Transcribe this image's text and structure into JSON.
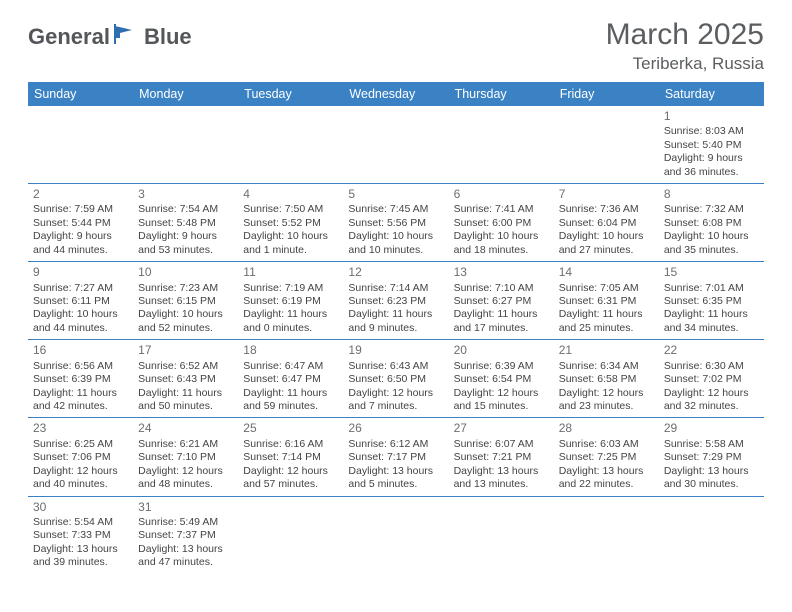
{
  "brand": {
    "part1": "General",
    "part2": "Blue",
    "text_color": "#54575a",
    "flag_color": "#2f6fb0"
  },
  "title": "March 2025",
  "location": "Teriberka, Russia",
  "colors": {
    "header_bg": "#3b82c4",
    "header_text": "#ffffff",
    "cell_border": "#3b82c4",
    "body_text": "#444444",
    "daynum_color": "#6b6e71",
    "title_color": "#5b5e61",
    "background": "#ffffff"
  },
  "fonts": {
    "day_header_size": 12.5,
    "cell_size": 10.5,
    "title_size": 30,
    "location_size": 17
  },
  "day_headers": [
    "Sunday",
    "Monday",
    "Tuesday",
    "Wednesday",
    "Thursday",
    "Friday",
    "Saturday"
  ],
  "weeks": [
    [
      null,
      null,
      null,
      null,
      null,
      null,
      {
        "n": "1",
        "sr": "Sunrise: 8:03 AM",
        "ss": "Sunset: 5:40 PM",
        "d1": "Daylight: 9 hours",
        "d2": "and 36 minutes."
      }
    ],
    [
      {
        "n": "2",
        "sr": "Sunrise: 7:59 AM",
        "ss": "Sunset: 5:44 PM",
        "d1": "Daylight: 9 hours",
        "d2": "and 44 minutes."
      },
      {
        "n": "3",
        "sr": "Sunrise: 7:54 AM",
        "ss": "Sunset: 5:48 PM",
        "d1": "Daylight: 9 hours",
        "d2": "and 53 minutes."
      },
      {
        "n": "4",
        "sr": "Sunrise: 7:50 AM",
        "ss": "Sunset: 5:52 PM",
        "d1": "Daylight: 10 hours",
        "d2": "and 1 minute."
      },
      {
        "n": "5",
        "sr": "Sunrise: 7:45 AM",
        "ss": "Sunset: 5:56 PM",
        "d1": "Daylight: 10 hours",
        "d2": "and 10 minutes."
      },
      {
        "n": "6",
        "sr": "Sunrise: 7:41 AM",
        "ss": "Sunset: 6:00 PM",
        "d1": "Daylight: 10 hours",
        "d2": "and 18 minutes."
      },
      {
        "n": "7",
        "sr": "Sunrise: 7:36 AM",
        "ss": "Sunset: 6:04 PM",
        "d1": "Daylight: 10 hours",
        "d2": "and 27 minutes."
      },
      {
        "n": "8",
        "sr": "Sunrise: 7:32 AM",
        "ss": "Sunset: 6:08 PM",
        "d1": "Daylight: 10 hours",
        "d2": "and 35 minutes."
      }
    ],
    [
      {
        "n": "9",
        "sr": "Sunrise: 7:27 AM",
        "ss": "Sunset: 6:11 PM",
        "d1": "Daylight: 10 hours",
        "d2": "and 44 minutes."
      },
      {
        "n": "10",
        "sr": "Sunrise: 7:23 AM",
        "ss": "Sunset: 6:15 PM",
        "d1": "Daylight: 10 hours",
        "d2": "and 52 minutes."
      },
      {
        "n": "11",
        "sr": "Sunrise: 7:19 AM",
        "ss": "Sunset: 6:19 PM",
        "d1": "Daylight: 11 hours",
        "d2": "and 0 minutes."
      },
      {
        "n": "12",
        "sr": "Sunrise: 7:14 AM",
        "ss": "Sunset: 6:23 PM",
        "d1": "Daylight: 11 hours",
        "d2": "and 9 minutes."
      },
      {
        "n": "13",
        "sr": "Sunrise: 7:10 AM",
        "ss": "Sunset: 6:27 PM",
        "d1": "Daylight: 11 hours",
        "d2": "and 17 minutes."
      },
      {
        "n": "14",
        "sr": "Sunrise: 7:05 AM",
        "ss": "Sunset: 6:31 PM",
        "d1": "Daylight: 11 hours",
        "d2": "and 25 minutes."
      },
      {
        "n": "15",
        "sr": "Sunrise: 7:01 AM",
        "ss": "Sunset: 6:35 PM",
        "d1": "Daylight: 11 hours",
        "d2": "and 34 minutes."
      }
    ],
    [
      {
        "n": "16",
        "sr": "Sunrise: 6:56 AM",
        "ss": "Sunset: 6:39 PM",
        "d1": "Daylight: 11 hours",
        "d2": "and 42 minutes."
      },
      {
        "n": "17",
        "sr": "Sunrise: 6:52 AM",
        "ss": "Sunset: 6:43 PM",
        "d1": "Daylight: 11 hours",
        "d2": "and 50 minutes."
      },
      {
        "n": "18",
        "sr": "Sunrise: 6:47 AM",
        "ss": "Sunset: 6:47 PM",
        "d1": "Daylight: 11 hours",
        "d2": "and 59 minutes."
      },
      {
        "n": "19",
        "sr": "Sunrise: 6:43 AM",
        "ss": "Sunset: 6:50 PM",
        "d1": "Daylight: 12 hours",
        "d2": "and 7 minutes."
      },
      {
        "n": "20",
        "sr": "Sunrise: 6:39 AM",
        "ss": "Sunset: 6:54 PM",
        "d1": "Daylight: 12 hours",
        "d2": "and 15 minutes."
      },
      {
        "n": "21",
        "sr": "Sunrise: 6:34 AM",
        "ss": "Sunset: 6:58 PM",
        "d1": "Daylight: 12 hours",
        "d2": "and 23 minutes."
      },
      {
        "n": "22",
        "sr": "Sunrise: 6:30 AM",
        "ss": "Sunset: 7:02 PM",
        "d1": "Daylight: 12 hours",
        "d2": "and 32 minutes."
      }
    ],
    [
      {
        "n": "23",
        "sr": "Sunrise: 6:25 AM",
        "ss": "Sunset: 7:06 PM",
        "d1": "Daylight: 12 hours",
        "d2": "and 40 minutes."
      },
      {
        "n": "24",
        "sr": "Sunrise: 6:21 AM",
        "ss": "Sunset: 7:10 PM",
        "d1": "Daylight: 12 hours",
        "d2": "and 48 minutes."
      },
      {
        "n": "25",
        "sr": "Sunrise: 6:16 AM",
        "ss": "Sunset: 7:14 PM",
        "d1": "Daylight: 12 hours",
        "d2": "and 57 minutes."
      },
      {
        "n": "26",
        "sr": "Sunrise: 6:12 AM",
        "ss": "Sunset: 7:17 PM",
        "d1": "Daylight: 13 hours",
        "d2": "and 5 minutes."
      },
      {
        "n": "27",
        "sr": "Sunrise: 6:07 AM",
        "ss": "Sunset: 7:21 PM",
        "d1": "Daylight: 13 hours",
        "d2": "and 13 minutes."
      },
      {
        "n": "28",
        "sr": "Sunrise: 6:03 AM",
        "ss": "Sunset: 7:25 PM",
        "d1": "Daylight: 13 hours",
        "d2": "and 22 minutes."
      },
      {
        "n": "29",
        "sr": "Sunrise: 5:58 AM",
        "ss": "Sunset: 7:29 PM",
        "d1": "Daylight: 13 hours",
        "d2": "and 30 minutes."
      }
    ],
    [
      {
        "n": "30",
        "sr": "Sunrise: 5:54 AM",
        "ss": "Sunset: 7:33 PM",
        "d1": "Daylight: 13 hours",
        "d2": "and 39 minutes."
      },
      {
        "n": "31",
        "sr": "Sunrise: 5:49 AM",
        "ss": "Sunset: 7:37 PM",
        "d1": "Daylight: 13 hours",
        "d2": "and 47 minutes."
      },
      null,
      null,
      null,
      null,
      null
    ]
  ]
}
